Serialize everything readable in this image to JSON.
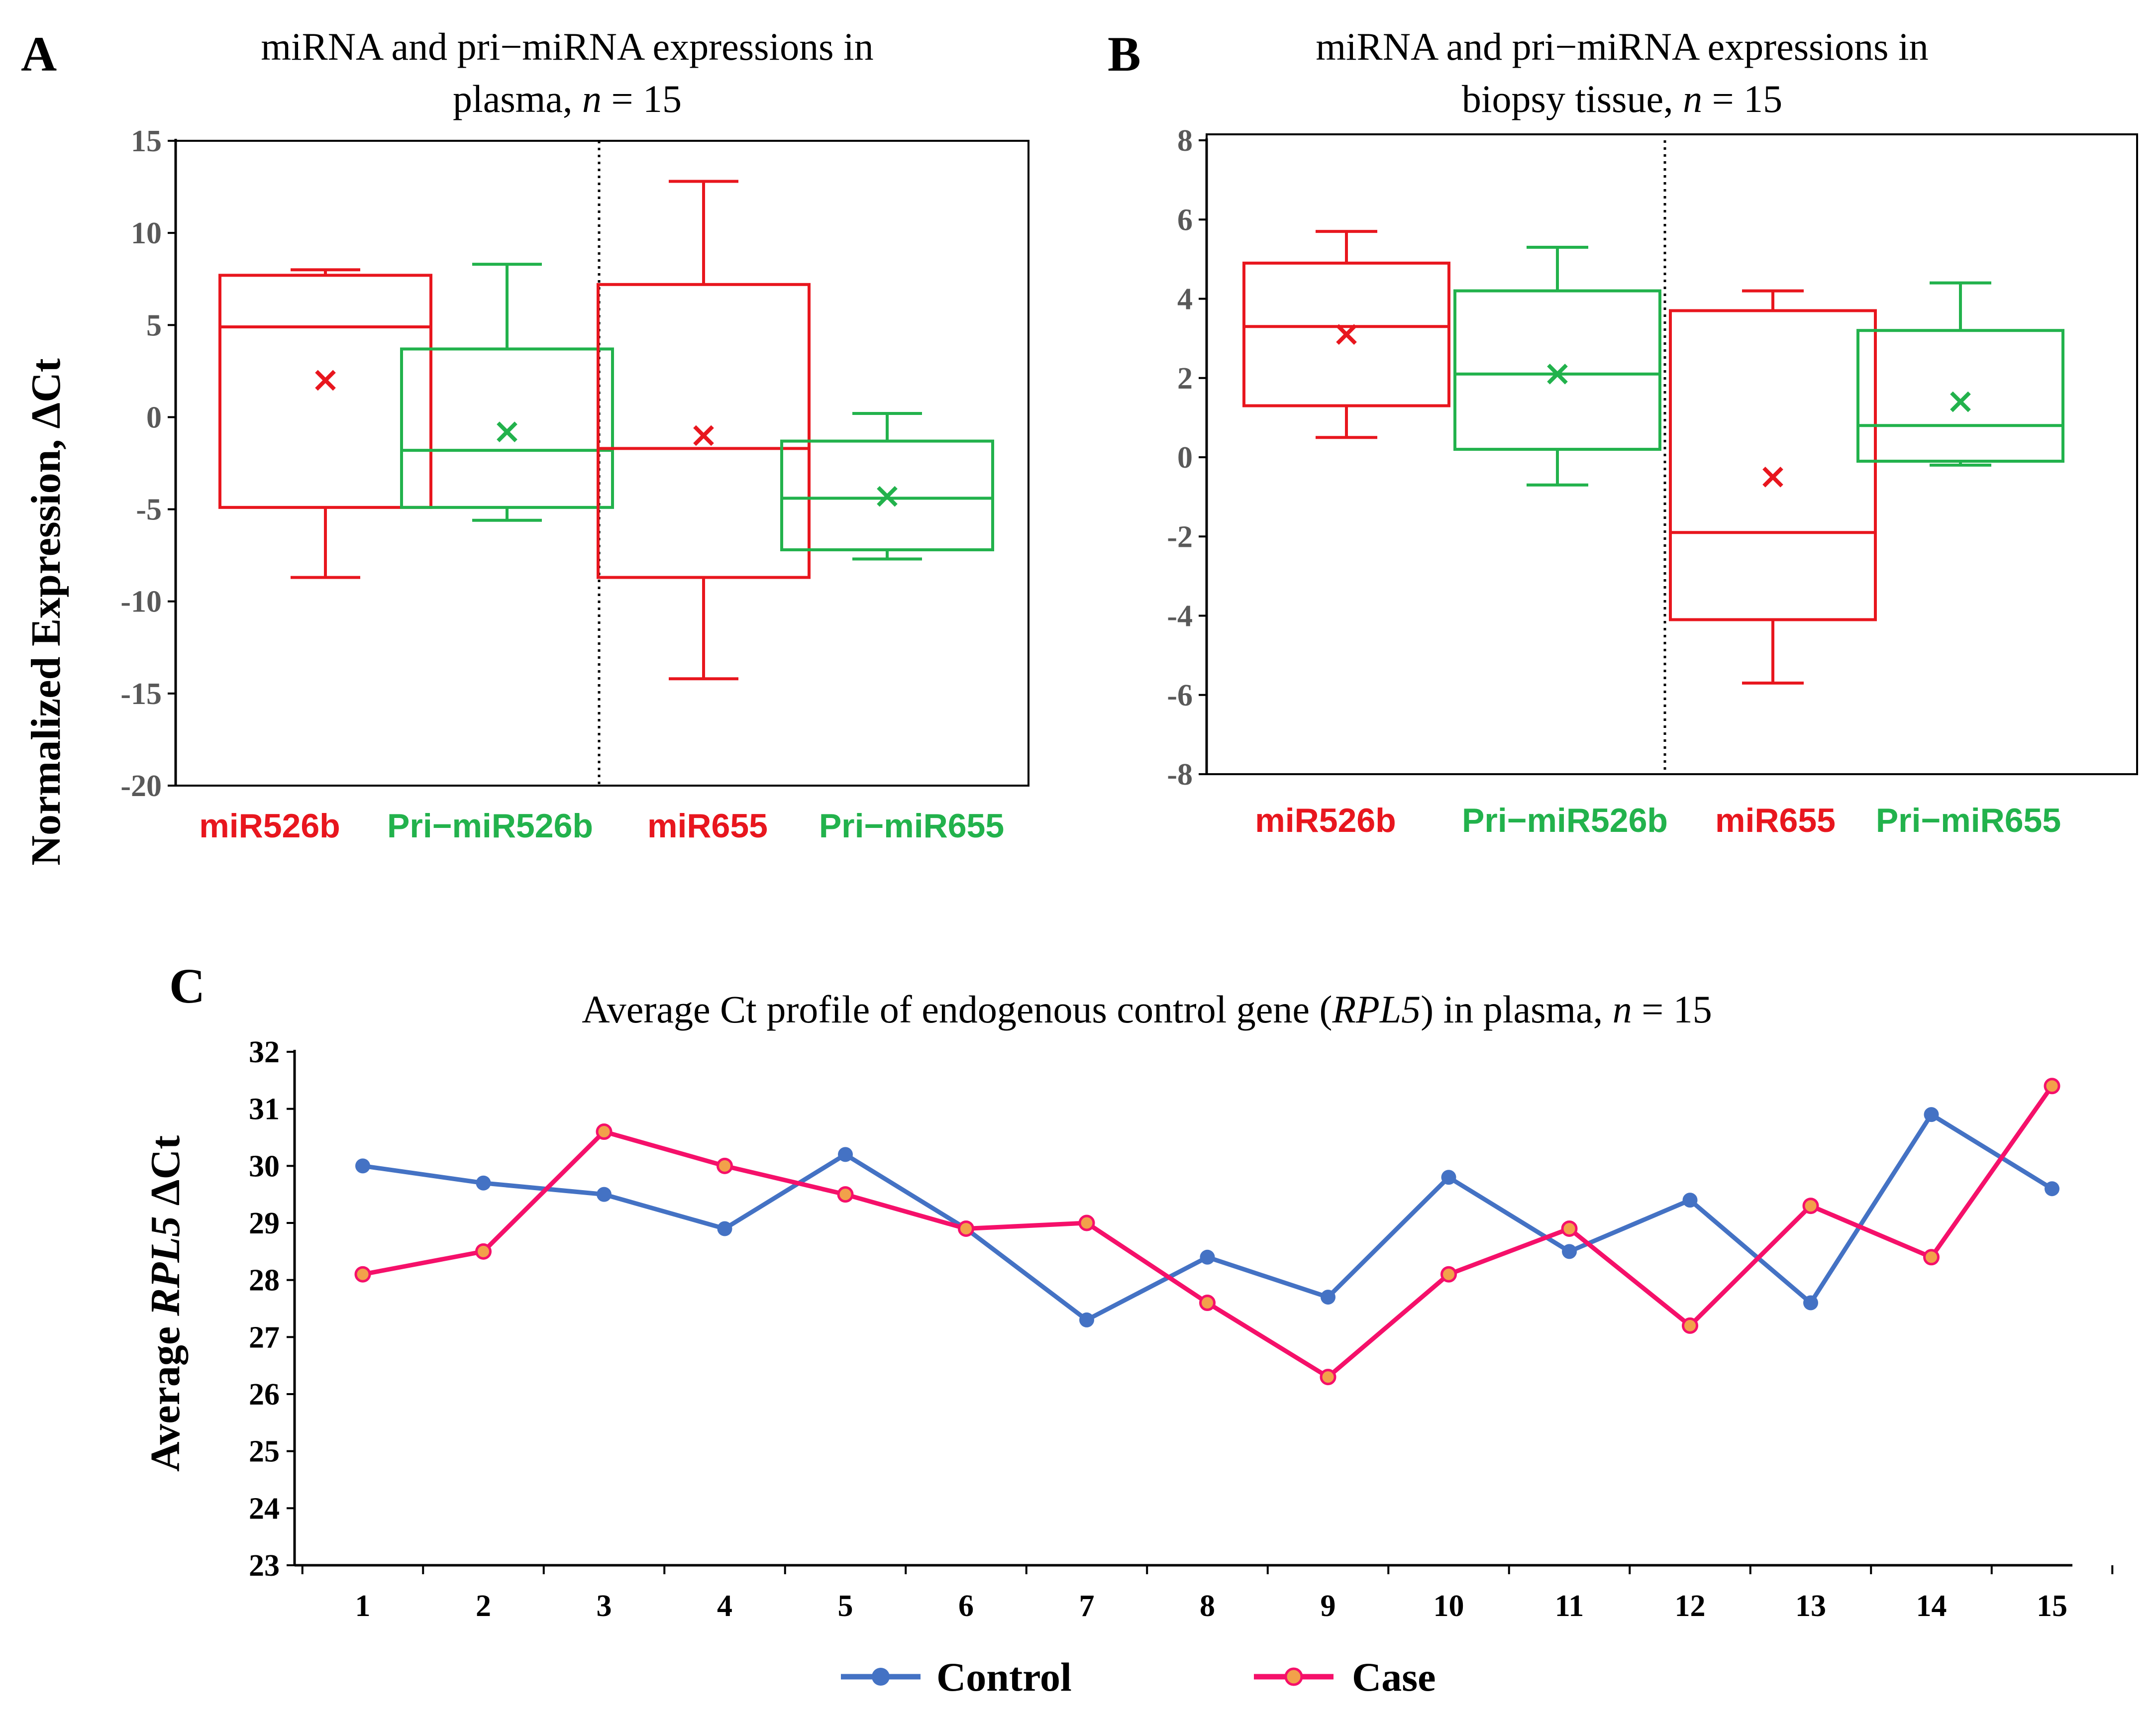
{
  "colors": {
    "red": "#e8161e",
    "green": "#22b24c",
    "control": "#4472c4",
    "case": "#f5106a",
    "case_marker": "#f2a14a",
    "axis": "#000000"
  },
  "chart_data": [
    {
      "panel": "A",
      "type": "box",
      "title_line1": "miRNA and pri−miRNA expressions in",
      "title_line2_pre": "plasma, ",
      "title_n": "n",
      "title_post": " = 15",
      "ylabel": "Normalized Expression, ΔCt",
      "ylim": [
        -20,
        15
      ],
      "yticks": [
        "15",
        "10",
        "5",
        "0",
        "-5",
        "-10",
        "-15",
        "-20"
      ],
      "ytick_values": [
        15,
        10,
        5,
        0,
        -5,
        -10,
        -15,
        -20
      ],
      "divider_after": 2,
      "boxes": [
        {
          "label": "miR526b",
          "color": "red",
          "min": -8.7,
          "q1": -4.9,
          "median": 4.9,
          "q3": 7.7,
          "max": 8.0,
          "mean": 2.0
        },
        {
          "label": "Pri−miR526b",
          "color": "green",
          "min": -5.6,
          "q1": -4.9,
          "median": -1.8,
          "q3": 3.7,
          "max": 8.3,
          "mean": -0.8
        },
        {
          "label": "miR655",
          "color": "red",
          "min": -14.2,
          "q1": -8.7,
          "median": -1.7,
          "q3": 7.2,
          "max": 12.8,
          "mean": -1.0
        },
        {
          "label": "Pri−miR655",
          "color": "green",
          "min": -7.7,
          "q1": -7.2,
          "median": -4.4,
          "q3": -1.3,
          "max": 0.2,
          "mean": -4.3
        }
      ]
    },
    {
      "panel": "B",
      "type": "box",
      "title_line1": "miRNA and pri−miRNA expressions in",
      "title_line2_pre": "biopsy tissue, ",
      "title_n": "n",
      "title_post": " = 15",
      "ylabel": "",
      "ylim": [
        -8,
        8
      ],
      "yticks": [
        "8",
        "6",
        "4",
        "2",
        "0",
        "-2",
        "-4",
        "-6",
        "-8"
      ],
      "ytick_values": [
        8,
        6,
        4,
        2,
        0,
        -2,
        -4,
        -6,
        -8
      ],
      "divider_after": 2,
      "boxes": [
        {
          "label": "miR526b",
          "color": "red",
          "min": 0.5,
          "q1": 1.3,
          "median": 3.3,
          "q3": 4.9,
          "max": 5.7,
          "mean": 3.1
        },
        {
          "label": "Pri−miR526b",
          "color": "green",
          "min": -0.7,
          "q1": 0.2,
          "median": 2.1,
          "q3": 4.2,
          "max": 5.3,
          "mean": 2.1
        },
        {
          "label": "miR655",
          "color": "red",
          "min": -5.7,
          "q1": -4.1,
          "median": -1.9,
          "q3": 3.7,
          "max": 4.2,
          "mean": -0.5
        },
        {
          "label": "Pri−miR655",
          "color": "green",
          "min": -0.2,
          "q1": -0.1,
          "median": 0.8,
          "q3": 3.2,
          "max": 4.4,
          "mean": 1.4
        }
      ]
    },
    {
      "panel": "C",
      "type": "line",
      "title_pre": "Average Ct profile of endogenous control gene (",
      "title_gene": "RPL5",
      "title_mid": ") in plasma, ",
      "title_n": "n",
      "title_post": " = 15",
      "ylabel_pre": "Average ",
      "ylabel_gene": "RPL5",
      "ylabel_post": " ΔCt",
      "ylim": [
        23,
        32
      ],
      "yticks": [
        "32",
        "31",
        "30",
        "29",
        "28",
        "27",
        "26",
        "25",
        "24",
        "23"
      ],
      "ytick_values": [
        32,
        31,
        30,
        29,
        28,
        27,
        26,
        25,
        24,
        23
      ],
      "categories": [
        "1",
        "2",
        "3",
        "4",
        "5",
        "6",
        "7",
        "8",
        "9",
        "10",
        "11",
        "12",
        "13",
        "14",
        "15"
      ],
      "series": [
        {
          "name": "Control",
          "color": "control",
          "values": [
            30.0,
            29.7,
            29.5,
            28.9,
            30.2,
            28.9,
            27.3,
            28.4,
            27.7,
            29.8,
            28.5,
            29.4,
            27.6,
            30.9,
            29.6
          ]
        },
        {
          "name": "Case",
          "color": "case",
          "values": [
            28.1,
            28.5,
            30.6,
            30.0,
            29.5,
            28.9,
            29.0,
            27.6,
            26.3,
            28.1,
            28.9,
            27.2,
            29.3,
            28.4,
            31.4
          ]
        }
      ]
    }
  ]
}
